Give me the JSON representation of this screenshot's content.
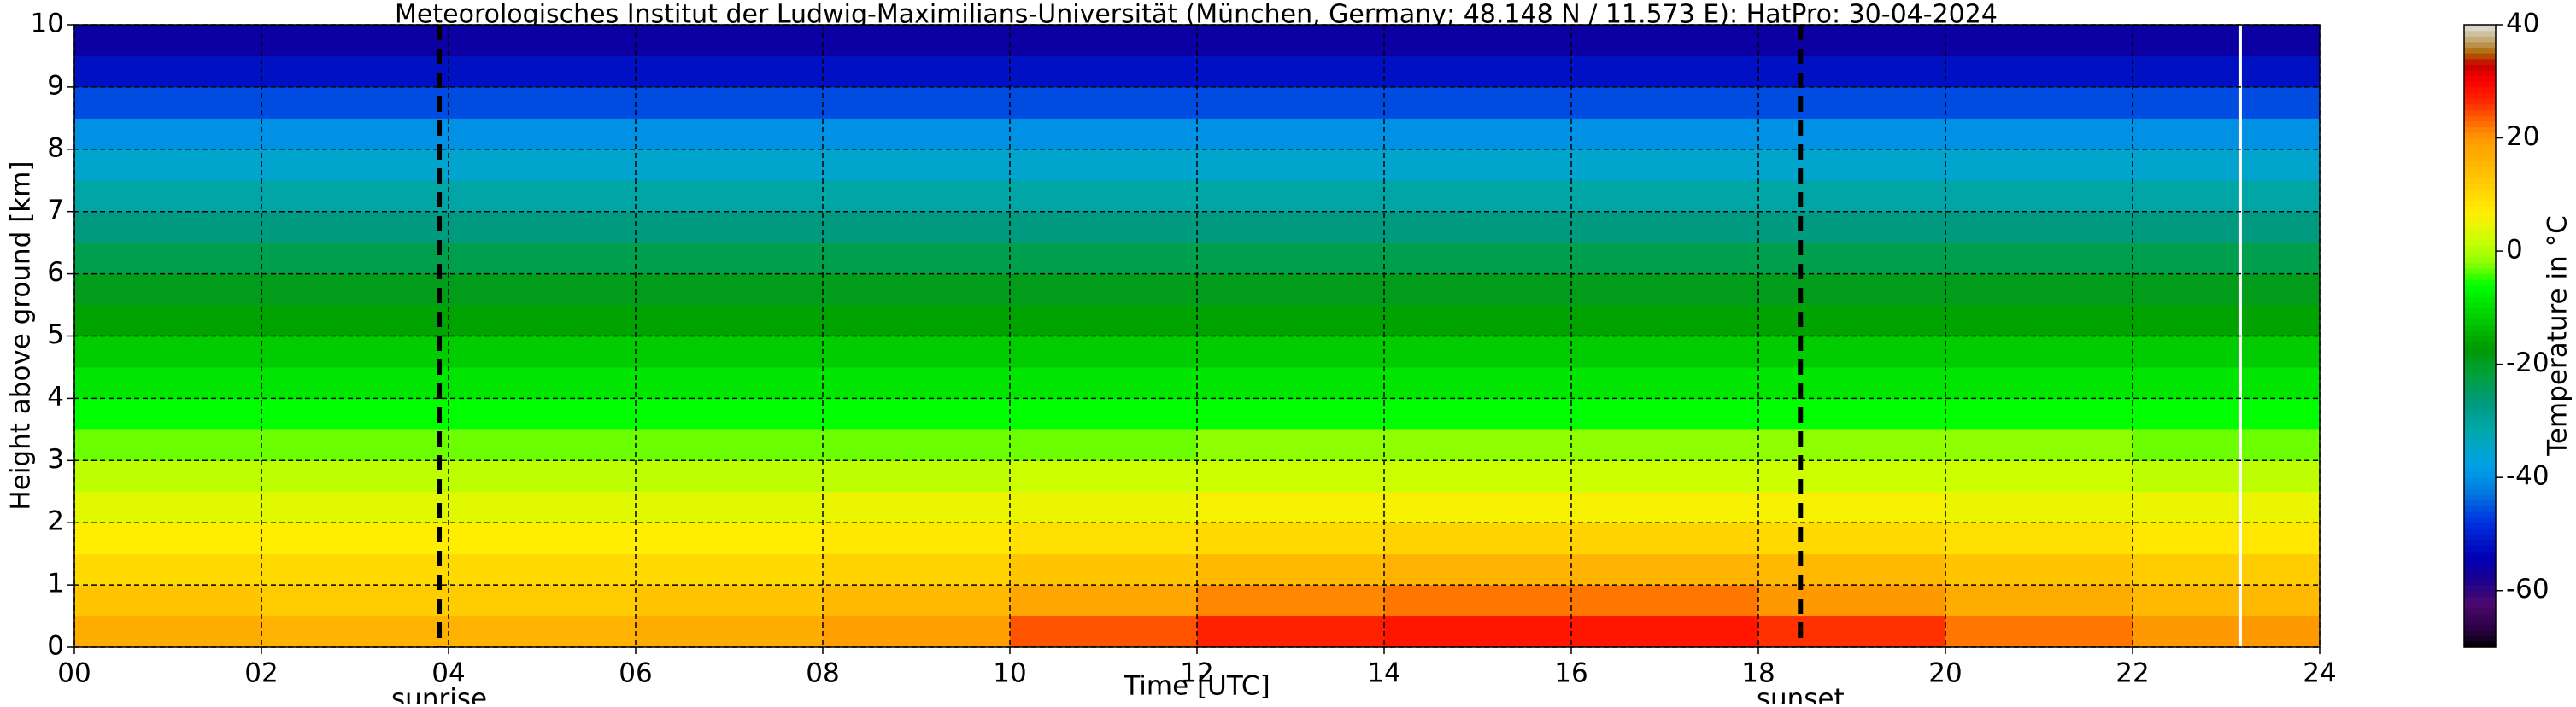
{
  "chart_data": {
    "type": "heatmap",
    "title": "Meteorologisches Institut der Ludwig-Maximilians-Universität (München, Germany; 48.148 N / 11.573 E):    HatPro: 30-04-2024",
    "xlabel": "Time [UTC]",
    "ylabel": "Height above ground [km]",
    "colorbar_label": "Temperature in $^\\circ$C",
    "x_edges": [
      0,
      2,
      4,
      6,
      8,
      10,
      12,
      14,
      16,
      18,
      20,
      22,
      24
    ],
    "y_edges": [
      0,
      0.5,
      1,
      1.5,
      2,
      2.5,
      3,
      3.5,
      4,
      4.5,
      5,
      5.5,
      6,
      6.5,
      7,
      7.5,
      8,
      8.5,
      9,
      9.5,
      10
    ],
    "values": [
      [
        17,
        16,
        16,
        17,
        19,
        24,
        27,
        28,
        28,
        26,
        22,
        20
      ],
      [
        13,
        12,
        12,
        13,
        15,
        18,
        21,
        22,
        22,
        20,
        17,
        15
      ],
      [
        10,
        10,
        10,
        10,
        11,
        13,
        15,
        16,
        16,
        15,
        13,
        12
      ],
      [
        7,
        7,
        7,
        7,
        8,
        9,
        10,
        11,
        11,
        10,
        9,
        8
      ],
      [
        4,
        4,
        4,
        4,
        5,
        5,
        6,
        6,
        6,
        6,
        5,
        5
      ],
      [
        1,
        1,
        1,
        1,
        1,
        2,
        2,
        2,
        2,
        2,
        2,
        1
      ],
      [
        -3,
        -3,
        -3,
        -3,
        -3,
        -3,
        -2,
        -2,
        -2,
        -2,
        -2,
        -3
      ],
      [
        -6,
        -6,
        -6,
        -6,
        -6,
        -6,
        -6,
        -6,
        -6,
        -6,
        -6,
        -6
      ],
      [
        -9,
        -9,
        -9,
        -9,
        -9,
        -9,
        -9,
        -9,
        -9,
        -9,
        -9,
        -9
      ],
      [
        -12,
        -12,
        -12,
        -12,
        -12,
        -12,
        -12,
        -12,
        -12,
        -12,
        -12,
        -12
      ],
      [
        -16,
        -16,
        -16,
        -16,
        -16,
        -16,
        -16,
        -16,
        -16,
        -16,
        -16,
        -16
      ],
      [
        -19,
        -19,
        -19,
        -19,
        -19,
        -19,
        -19,
        -19,
        -19,
        -19,
        -19,
        -19
      ],
      [
        -23,
        -23,
        -23,
        -23,
        -23,
        -23,
        -23,
        -23,
        -23,
        -23,
        -23,
        -23
      ],
      [
        -27,
        -27,
        -27,
        -27,
        -27,
        -27,
        -27,
        -27,
        -27,
        -27,
        -27,
        -27
      ],
      [
        -31,
        -31,
        -31,
        -31,
        -31,
        -31,
        -31,
        -31,
        -31,
        -31,
        -31,
        -31
      ],
      [
        -35,
        -35,
        -35,
        -35,
        -35,
        -35,
        -35,
        -35,
        -35,
        -35,
        -35,
        -35
      ],
      [
        -40,
        -40,
        -40,
        -40,
        -40,
        -40,
        -40,
        -40,
        -40,
        -40,
        -40,
        -40
      ],
      [
        -46,
        -46,
        -46,
        -46,
        -46,
        -46,
        -46,
        -46,
        -46,
        -46,
        -46,
        -46
      ],
      [
        -52,
        -52,
        -52,
        -52,
        -52,
        -52,
        -52,
        -52,
        -52,
        -52,
        -52,
        -52
      ],
      [
        -56,
        -56,
        -56,
        -56,
        -56,
        -56,
        -56,
        -56,
        -56,
        -56,
        -56,
        -56
      ]
    ],
    "xlim": [
      0,
      24
    ],
    "xticks": [
      {
        "value": 0,
        "label": "00"
      },
      {
        "value": 2,
        "label": "02"
      },
      {
        "value": 4,
        "label": "04"
      },
      {
        "value": 6,
        "label": "06"
      },
      {
        "value": 8,
        "label": "08"
      },
      {
        "value": 10,
        "label": "10"
      },
      {
        "value": 12,
        "label": "12"
      },
      {
        "value": 14,
        "label": "14"
      },
      {
        "value": 16,
        "label": "16"
      },
      {
        "value": 18,
        "label": "18"
      },
      {
        "value": 20,
        "label": "20"
      },
      {
        "value": 22,
        "label": "22"
      },
      {
        "value": 24,
        "label": "24"
      }
    ],
    "ylim": [
      0,
      10
    ],
    "yticks": [
      0,
      1,
      2,
      3,
      4,
      5,
      6,
      7,
      8,
      9,
      10
    ],
    "clim": [
      -70,
      40
    ],
    "cticks": [
      -60,
      -40,
      -20,
      0,
      20,
      40
    ],
    "colorscale": [
      [
        -70,
        "#000000"
      ],
      [
        -67,
        "#2a0040"
      ],
      [
        -62,
        "#4a0a70"
      ],
      [
        -58,
        "#1a0090"
      ],
      [
        -54,
        "#0000b4"
      ],
      [
        -48,
        "#0030e0"
      ],
      [
        -42,
        "#0080e0"
      ],
      [
        -38,
        "#00a0e8"
      ],
      [
        -32,
        "#00a8b0"
      ],
      [
        -27,
        "#009a80"
      ],
      [
        -22,
        "#00a040"
      ],
      [
        -17,
        "#009900"
      ],
      [
        -12,
        "#00cc00"
      ],
      [
        -6,
        "#00ff00"
      ],
      [
        -2,
        "#90ff00"
      ],
      [
        2,
        "#ccff00"
      ],
      [
        7,
        "#ffee00"
      ],
      [
        12,
        "#ffcc00"
      ],
      [
        20,
        "#ff9900"
      ],
      [
        27,
        "#ff2000"
      ],
      [
        30,
        "#ff0000"
      ],
      [
        33,
        "#c80000"
      ],
      [
        35,
        "#b06000"
      ],
      [
        37,
        "#c0a060"
      ],
      [
        40,
        "#e0e0e0"
      ]
    ],
    "grid": true,
    "annotations": [
      {
        "label": "sunrise",
        "x": 3.9
      },
      {
        "label": "sunset",
        "x": 18.45
      }
    ],
    "white_line_x": 23.15
  }
}
